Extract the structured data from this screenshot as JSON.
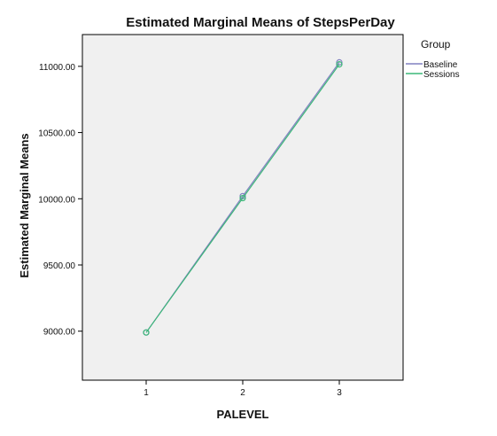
{
  "chart_data": {
    "type": "line",
    "title": "Estimated Marginal Means of StepsPerDay",
    "xlabel": "PALEVEL",
    "ylabel": "Estimated Marginal Means",
    "categories": [
      "1",
      "2",
      "3"
    ],
    "yticks": [
      "9000.00",
      "9500.00",
      "10000.00",
      "10500.00",
      "11000.00"
    ],
    "ylim": [
      8630,
      11240
    ],
    "grid": false,
    "legend": {
      "title": "Group",
      "placement": "top-right-outside"
    },
    "series": [
      {
        "name": "Baseline",
        "color": "#8080c0",
        "values": [
          8990,
          10020,
          11030
        ]
      },
      {
        "name": "Sessions",
        "color": "#3cb878",
        "values": [
          8990,
          10005,
          11015
        ]
      }
    ],
    "plot_background": "#f0f0f0"
  }
}
